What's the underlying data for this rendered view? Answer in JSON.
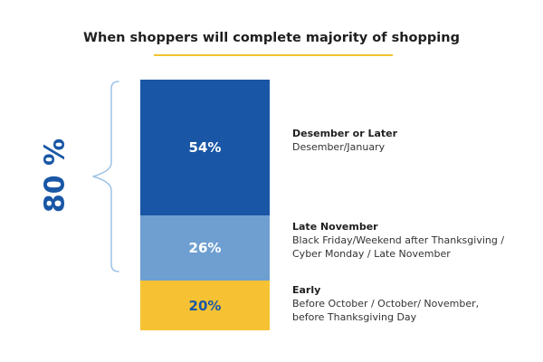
{
  "chart_data": {
    "type": "bar",
    "stacked": true,
    "title": "When shoppers will complete majority of shopping",
    "unit": "%",
    "categories": [
      "Desember or Later",
      "Late November",
      "Early"
    ],
    "values": [
      54,
      26,
      20
    ],
    "value_labels": [
      "54%",
      "26%",
      "20%"
    ],
    "descriptions": [
      "Desember/January",
      "Black Friday/Weekend after Thanksgiving / Cyber Monday / Late November",
      "Before October / October/ November, before Thanksgiving Day"
    ],
    "segment_colors": [
      "#1957a6",
      "#6e9fd0",
      "#f6c233"
    ],
    "label_colors": [
      "#ffffff",
      "#ffffff",
      "#1957a6"
    ],
    "bracket_total_label": "80 %",
    "bracket_color": "#9cc3e6",
    "total_color": "#1957a6",
    "accent_color": "#f2c232"
  }
}
